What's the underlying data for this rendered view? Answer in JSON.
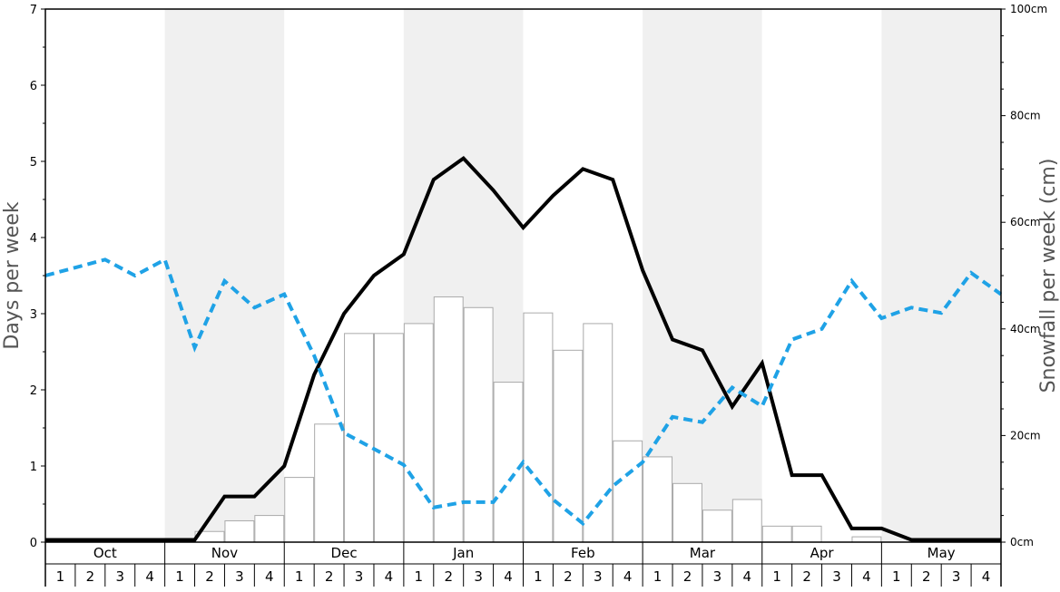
{
  "chart_data": {
    "type": "bar",
    "ylabel": "Days per week",
    "y2label": "Snowfall per week (cm)",
    "ylim": [
      0,
      7
    ],
    "y2lim": [
      0,
      100
    ],
    "yticks": [
      "0",
      "1",
      "2",
      "3",
      "4",
      "5",
      "6",
      "7"
    ],
    "y2ticks": [
      "0cm",
      "20cm",
      "40cm",
      "60cm",
      "80cm",
      "100cm"
    ],
    "grid": false,
    "months": [
      "Oct",
      "Nov",
      "Dec",
      "Jan",
      "Feb",
      "Mar",
      "Apr",
      "May"
    ],
    "weeks": [
      "1",
      "2",
      "3",
      "4"
    ],
    "series": [
      {
        "kind": "bar",
        "axis": "left",
        "color": "#ffffff",
        "values": [
          0,
          0,
          0,
          0,
          0,
          0.14,
          0.28,
          0.35,
          0.85,
          1.55,
          2.74,
          2.74,
          2.87,
          3.22,
          3.08,
          2.1,
          3.01,
          2.52,
          2.87,
          1.33,
          1.12,
          0.77,
          0.42,
          0.56,
          0.21,
          0.21,
          0.0,
          0.07,
          0,
          0,
          0,
          0
        ]
      },
      {
        "kind": "line",
        "style": "solid",
        "axis": "left",
        "color": "#000000",
        "values": [
          0.03,
          0.03,
          0.03,
          0.03,
          0.03,
          0.03,
          0.6,
          0.6,
          1.0,
          2.2,
          3.0,
          3.5,
          3.78,
          4.76,
          5.04,
          4.62,
          4.13,
          4.55,
          4.9,
          4.76,
          3.57,
          2.66,
          2.52,
          1.78,
          2.35,
          0.88,
          0.88,
          0.18,
          0.18,
          0.03,
          0.03,
          0.03,
          0.03
        ]
      },
      {
        "kind": "line",
        "style": "dashed",
        "axis": "right",
        "color": "#1fa2e6",
        "values": [
          50,
          51.5,
          53,
          50,
          53,
          36.5,
          49,
          44,
          46.5,
          35,
          20.5,
          17.5,
          14.5,
          6.5,
          7.5,
          7.5,
          15,
          8,
          3.5,
          10.5,
          15,
          23.5,
          22.5,
          29,
          25.5,
          38,
          40,
          49,
          42,
          44,
          43,
          50.5,
          46.5
        ]
      }
    ]
  }
}
